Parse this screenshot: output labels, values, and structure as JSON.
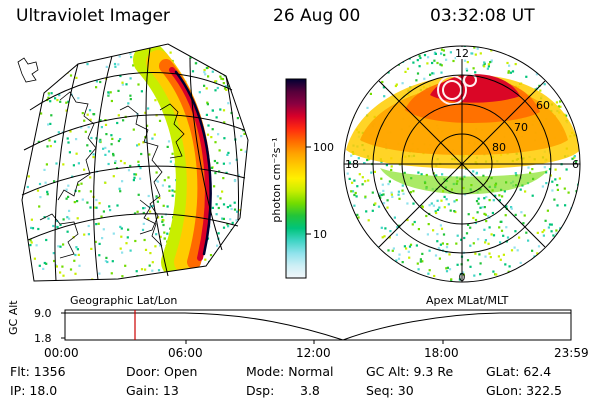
{
  "header": {
    "title": "Ultraviolet Imager",
    "date": "26 Aug 00",
    "time": "03:32:08 UT"
  },
  "geo_panel": {
    "label": "Geographic Lat/Lon"
  },
  "polar_panel": {
    "label": "Apex MLat/MLT",
    "mlt_labels": [
      "12",
      "18",
      "6",
      "0"
    ],
    "lat_labels": [
      "60",
      "70",
      "80"
    ]
  },
  "colorbar": {
    "unit_label": "photon cm⁻²s⁻¹",
    "ticks": [
      "100",
      "10"
    ],
    "colors": [
      "#000033",
      "#55003a",
      "#8a0040",
      "#d80028",
      "#ff2a10",
      "#ff6a00",
      "#ffa300",
      "#ffcc00",
      "#fff000",
      "#c8ee00",
      "#72dc00",
      "#22c43a",
      "#00c47a",
      "#3fd4c4",
      "#8fe2ec",
      "#cdeff5",
      "#f2f6fa"
    ]
  },
  "altitude_plot": {
    "axis_label": "GC Alt",
    "y_ticks": [
      "9.0",
      "1.8"
    ],
    "x_ticks": [
      "00:00",
      "06:00",
      "12:00",
      "18:00",
      "23:59"
    ],
    "current_time_marker_color": "#cc0000"
  },
  "info": {
    "flt": "Flt: 1356",
    "ip": "IP: 18.0",
    "door": "Door: Open",
    "gain": "Gain: 13",
    "mode": "Mode: Normal",
    "dsp_label": "Dsp:",
    "dsp_value": "3.8",
    "gc_alt": "GC Alt: 9.3 Re",
    "seq": "Seq: 30",
    "glat": "GLat: 62.4",
    "glon": "GLon: 322.5"
  }
}
